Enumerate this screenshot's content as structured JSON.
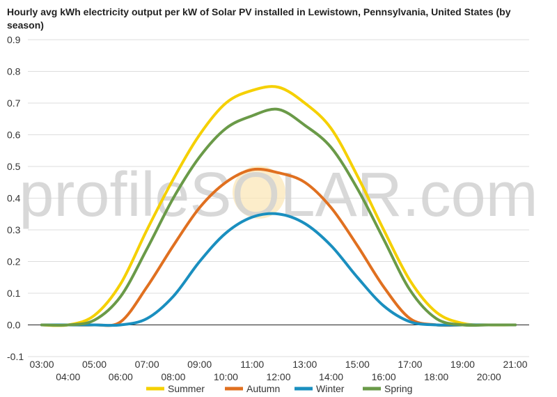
{
  "chart_data": {
    "type": "line",
    "title": "Hourly avg kWh electricity output per kW of Solar PV installed in Lewistown, Pennsylvania, United States (by season)",
    "xlabel": "",
    "ylabel": "",
    "x": [
      "03:00",
      "04:00",
      "05:00",
      "06:00",
      "07:00",
      "08:00",
      "09:00",
      "10:00",
      "11:00",
      "12:00",
      "13:00",
      "14:00",
      "15:00",
      "16:00",
      "17:00",
      "18:00",
      "19:00",
      "20:00",
      "21:00"
    ],
    "ylim": [
      -0.1,
      0.9
    ],
    "yticks": [
      "-0.1",
      "0.0",
      "0.1",
      "0.2",
      "0.3",
      "0.4",
      "0.5",
      "0.6",
      "0.7",
      "0.8",
      "0.9"
    ],
    "grid": true,
    "legend_position": "bottom",
    "series": [
      {
        "name": "Summer",
        "color": "#f5d000",
        "values": [
          0,
          0,
          0.03,
          0.13,
          0.3,
          0.46,
          0.6,
          0.7,
          0.74,
          0.75,
          0.7,
          0.62,
          0.47,
          0.3,
          0.14,
          0.04,
          0.005,
          0,
          0
        ]
      },
      {
        "name": "Autumn",
        "color": "#e07020",
        "values": [
          0,
          0,
          0,
          0.01,
          0.12,
          0.25,
          0.37,
          0.45,
          0.49,
          0.48,
          0.45,
          0.37,
          0.25,
          0.12,
          0.02,
          0,
          0,
          0,
          0
        ]
      },
      {
        "name": "Winter",
        "color": "#1a8fbf",
        "values": [
          0,
          0,
          0,
          0,
          0.02,
          0.09,
          0.2,
          0.29,
          0.34,
          0.35,
          0.32,
          0.25,
          0.15,
          0.06,
          0.01,
          0,
          0,
          0,
          0
        ]
      },
      {
        "name": "Spring",
        "color": "#6a9a48",
        "values": [
          0,
          0,
          0.015,
          0.09,
          0.24,
          0.4,
          0.53,
          0.62,
          0.66,
          0.68,
          0.63,
          0.56,
          0.43,
          0.27,
          0.11,
          0.02,
          0,
          0,
          0
        ]
      }
    ]
  },
  "watermark": "profileSOLAR.com"
}
